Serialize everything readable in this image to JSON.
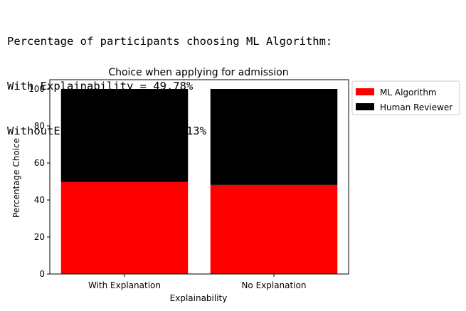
{
  "output": {
    "line1": "Percentage of participants choosing ML Algorithm:",
    "line2": "With Explainability = 49.78%",
    "line3": "WithoutExplainability = 48.13%"
  },
  "chart_data": {
    "type": "bar",
    "stacked": true,
    "title": "Choice when applying for admission",
    "xlabel": "Explainability",
    "ylabel": "Percentage Choice",
    "categories": [
      "With Explanation",
      "No Explanation"
    ],
    "series": [
      {
        "name": "ML Algorithm",
        "values": [
          49.78,
          48.13
        ],
        "color": "#ff0000"
      },
      {
        "name": "Human Reviewer",
        "values": [
          50.22,
          51.87
        ],
        "color": "#000000"
      }
    ],
    "ylim": [
      0,
      105
    ],
    "yticks": [
      0,
      20,
      40,
      60,
      80,
      100
    ],
    "legend_position": "outside-right",
    "grid": false
  }
}
